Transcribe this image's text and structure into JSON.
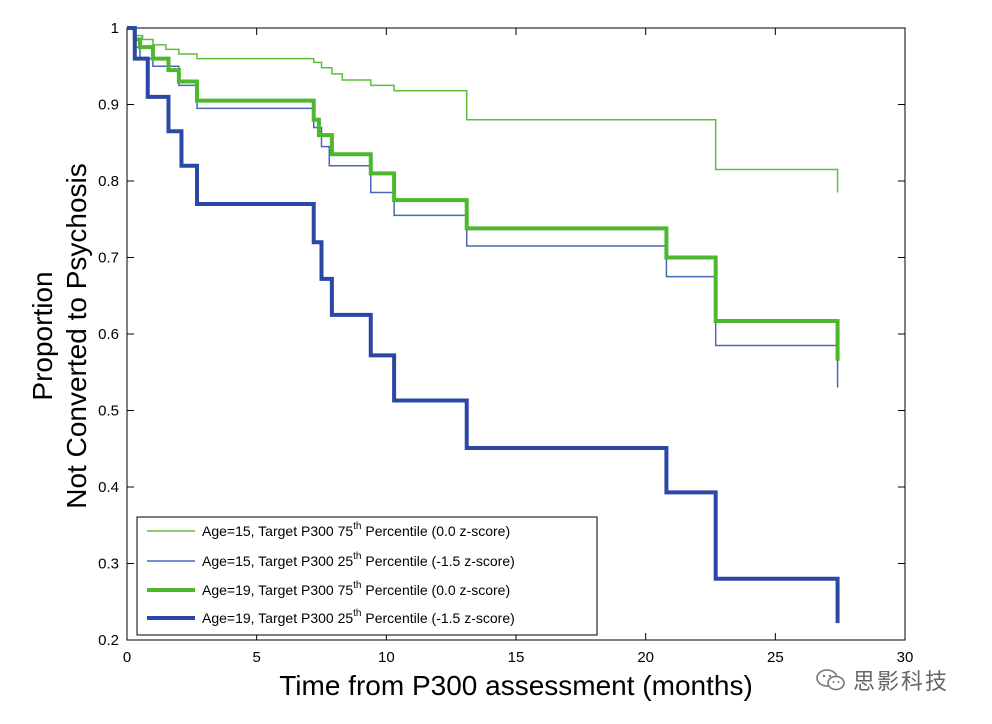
{
  "chart_data": {
    "type": "line",
    "xlabel": "Time from P300 assessment (months)",
    "ylabel_line1": "Proportion",
    "ylabel_line2": "Not Converted to Psychosis",
    "xlim": [
      0,
      30
    ],
    "ylim": [
      0.2,
      1.0
    ],
    "xticks": [
      "0",
      "5",
      "10",
      "15",
      "20",
      "25",
      "30"
    ],
    "yticks": [
      "0.2",
      "0.3",
      "0.4",
      "0.5",
      "0.6",
      "0.7",
      "0.8",
      "0.9",
      "1"
    ],
    "grid": false,
    "legend_position": "bottom-left",
    "series": [
      {
        "name": "Age=15, Target P300 75th Percentile (0.0 z-score)",
        "legend_pre": "Age=15, Target P300 75",
        "legend_sup": "th",
        "legend_post": " Percentile (0.0 z-score)",
        "color": "#5cbf3a",
        "width": 1.5,
        "x": [
          0,
          0.3,
          0.6,
          1.0,
          1.5,
          2.0,
          2.7,
          7.2,
          7.5,
          7.9,
          8.3,
          9.4,
          10.3,
          13.1,
          22.7,
          27.4
        ],
        "y": [
          1.0,
          0.99,
          0.985,
          0.978,
          0.972,
          0.966,
          0.96,
          0.955,
          0.948,
          0.94,
          0.932,
          0.925,
          0.918,
          0.88,
          0.815,
          0.785
        ]
      },
      {
        "name": "Age=15, Target P300 25th Percentile (-1.5 z-score)",
        "legend_pre": "Age=15, Target P300 25",
        "legend_sup": "th",
        "legend_post": " Percentile (-1.5 z-score)",
        "color": "#4a66b8",
        "width": 1.5,
        "x": [
          0,
          0.3,
          0.5,
          1.0,
          2.0,
          2.7,
          7.2,
          7.5,
          7.8,
          9.4,
          10.3,
          13.1,
          20.8,
          22.7,
          27.4
        ],
        "y": [
          1.0,
          0.975,
          0.96,
          0.95,
          0.925,
          0.895,
          0.87,
          0.845,
          0.82,
          0.785,
          0.755,
          0.715,
          0.675,
          0.585,
          0.53
        ]
      },
      {
        "name": "Age=19, Target P300 75th Percentile (0.0 z-score)",
        "legend_pre": "Age=19, Target P300 75",
        "legend_sup": "th",
        "legend_post": " Percentile (0.0 z-score)",
        "color": "#4cb82e",
        "width": 4,
        "x": [
          0,
          0.3,
          0.5,
          1.0,
          1.6,
          2.0,
          2.7,
          7.2,
          7.4,
          7.9,
          9.4,
          10.3,
          13.1,
          20.8,
          22.7,
          27.4
        ],
        "y": [
          1.0,
          0.985,
          0.975,
          0.96,
          0.945,
          0.93,
          0.905,
          0.88,
          0.86,
          0.835,
          0.81,
          0.775,
          0.738,
          0.7,
          0.617,
          0.565
        ]
      },
      {
        "name": "Age=19, Target P300 25th Percentile (-1.5 z-score)",
        "legend_pre": "Age=19, Target P300 25",
        "legend_sup": "th",
        "legend_post": " Percentile (-1.5 z-score)",
        "color": "#2b48a8",
        "width": 4,
        "x": [
          0,
          0.3,
          0.8,
          1.6,
          2.1,
          2.7,
          7.2,
          7.5,
          7.9,
          9.4,
          10.3,
          13.1,
          20.8,
          22.7,
          27.4
        ],
        "y": [
          1.0,
          0.96,
          0.91,
          0.865,
          0.82,
          0.77,
          0.72,
          0.672,
          0.625,
          0.572,
          0.513,
          0.451,
          0.393,
          0.28,
          0.222
        ]
      }
    ]
  },
  "watermark": {
    "text": "思影科技",
    "icon": "wechat-logo-icon"
  }
}
